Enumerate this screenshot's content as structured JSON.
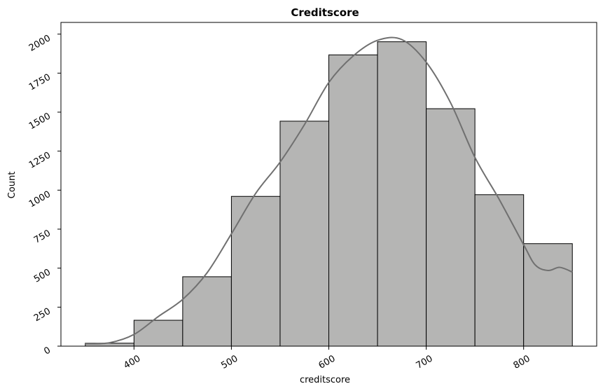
{
  "chart_data": {
    "type": "bar",
    "title": "Creditscore",
    "xlabel": "creditscore",
    "ylabel": "Count",
    "xlim": [
      325,
      875
    ],
    "ylim": [
      0,
      2075
    ],
    "bins": [
      {
        "start": 350,
        "end": 400,
        "value": 19
      },
      {
        "start": 400,
        "end": 450,
        "value": 166
      },
      {
        "start": 450,
        "end": 500,
        "value": 445
      },
      {
        "start": 500,
        "end": 550,
        "value": 960
      },
      {
        "start": 550,
        "end": 600,
        "value": 1442
      },
      {
        "start": 600,
        "end": 650,
        "value": 1867
      },
      {
        "start": 650,
        "end": 700,
        "value": 1951
      },
      {
        "start": 700,
        "end": 750,
        "value": 1522
      },
      {
        "start": 750,
        "end": 800,
        "value": 971
      },
      {
        "start": 800,
        "end": 850,
        "value": 657
      }
    ],
    "kde": {
      "x": [
        350,
        375,
        400,
        425,
        450,
        475,
        500,
        525,
        550,
        575,
        600,
        625,
        650,
        675,
        700,
        725,
        750,
        775,
        800,
        812,
        825,
        837,
        850
      ],
      "y": [
        15,
        22,
        75,
        190,
        300,
        470,
        720,
        980,
        1180,
        1420,
        1690,
        1860,
        1960,
        1965,
        1820,
        1560,
        1210,
        940,
        650,
        520,
        485,
        505,
        475
      ]
    },
    "x_ticks": [
      "400",
      "500",
      "600",
      "700",
      "800"
    ],
    "x_tick_values": [
      400,
      500,
      600,
      700,
      800
    ],
    "y_ticks": [
      "0",
      "250",
      "500",
      "750",
      "1000",
      "1250",
      "1500",
      "1750",
      "2000"
    ],
    "y_tick_values": [
      0,
      250,
      500,
      750,
      1000,
      1250,
      1500,
      1750,
      2000
    ],
    "bar_color": "#b5b5b4",
    "bar_edge_color": "#000000",
    "kde_color": "#707070",
    "grid": false,
    "legend": "none"
  }
}
